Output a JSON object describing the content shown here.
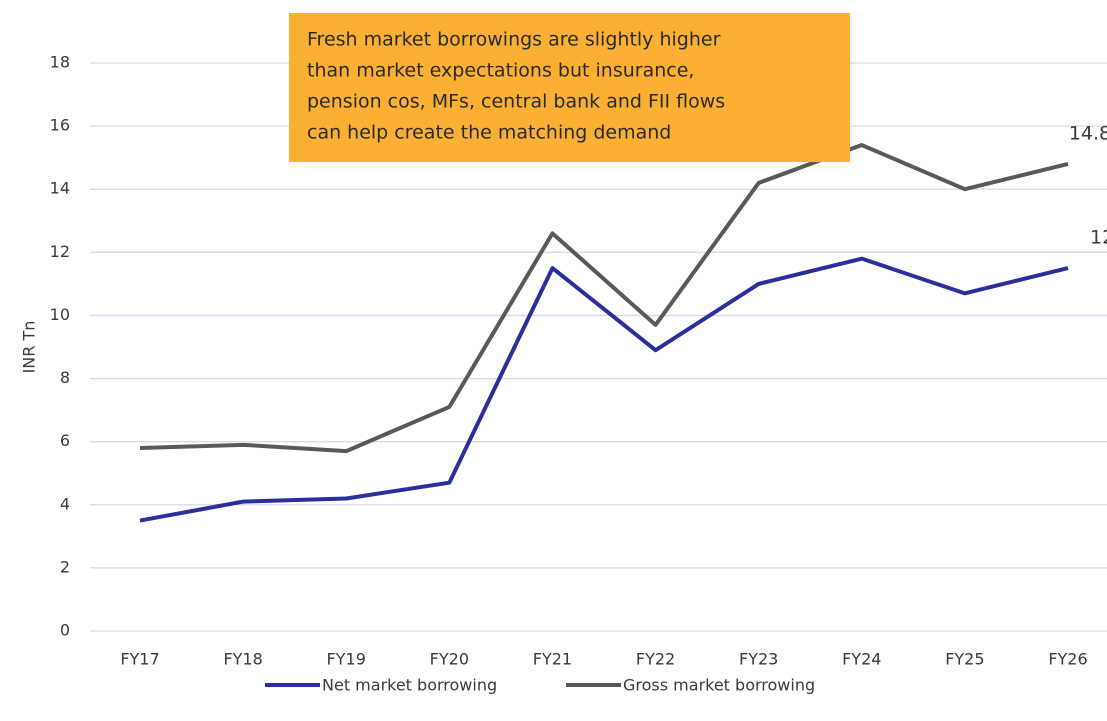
{
  "chart_data": {
    "type": "line",
    "annotation": [
      "Fresh market borrowings are slightly higher",
      "than market expectations but insurance,",
      "pension cos, MFs, central bank and FII flows",
      "can help create the matching demand"
    ],
    "ylabel": "INR Tn",
    "categories": [
      "FY17",
      "FY18",
      "FY19",
      "FY20",
      "FY21",
      "FY22",
      "FY23",
      "FY24",
      "FY25",
      "FY26"
    ],
    "series": [
      {
        "name": "Net market borrowing",
        "color": "#2a2f9a",
        "values": [
          3.5,
          4.1,
          4.2,
          4.7,
          11.5,
          8.9,
          11.0,
          11.8,
          10.7,
          11.5
        ],
        "value_labels": [
          null,
          null,
          null,
          null,
          null,
          null,
          null,
          null,
          null,
          "12"
        ]
      },
      {
        "name": "Gross market borrowing",
        "color": "#595959",
        "values": [
          5.8,
          5.9,
          5.7,
          7.1,
          12.6,
          9.7,
          14.2,
          15.4,
          14.0,
          14.8
        ],
        "value_labels": [
          null,
          null,
          null,
          null,
          null,
          null,
          null,
          null,
          null,
          "14.8"
        ]
      }
    ],
    "ylim": [
      0,
      18
    ],
    "yticks": [
      0,
      2,
      4,
      6,
      8,
      10,
      12,
      14,
      16,
      18
    ],
    "grid": true,
    "legend": "bottom"
  }
}
